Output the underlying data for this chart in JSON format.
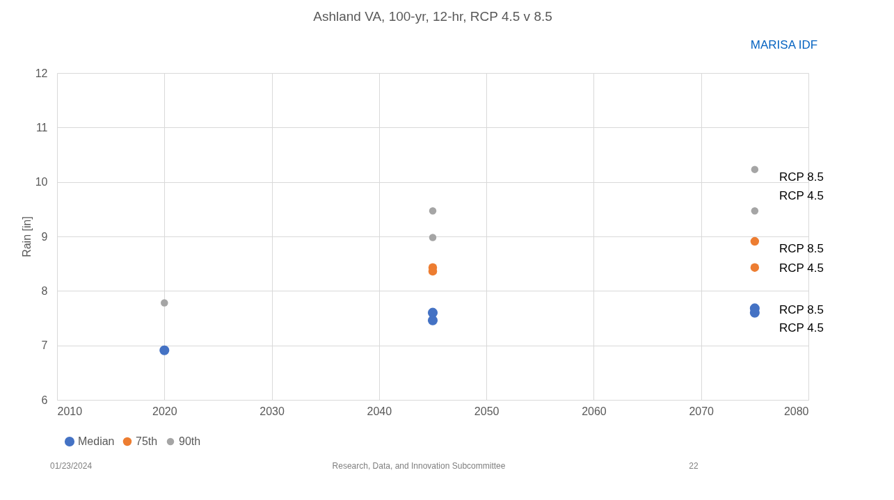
{
  "chart_data": {
    "type": "scatter",
    "title": "Ashland VA, 100-yr, 12-hr, RCP 4.5 v 8.5",
    "ylabel": "Rain [in]",
    "xlim": [
      2010,
      2080
    ],
    "xticks": [
      2010,
      2020,
      2030,
      2040,
      2050,
      2060,
      2070,
      2080
    ],
    "ylim": [
      6,
      12
    ],
    "yticks": [
      6,
      7,
      8,
      9,
      10,
      11,
      12
    ],
    "grid": true,
    "legend": "bottom",
    "marker": "circle",
    "series": [
      {
        "name": "Median",
        "color": "#4472c4",
        "x": [
          2020,
          2045,
          2045,
          2075,
          2075
        ],
        "values": [
          6.91,
          7.6,
          7.46,
          7.68,
          7.6
        ]
      },
      {
        "name": "75th",
        "color": "#ed7d31",
        "x": [
          2045,
          2045,
          2075,
          2075
        ],
        "values": [
          8.43,
          8.36,
          8.91,
          8.43
        ]
      },
      {
        "name": "90th",
        "color": "#a5a5a5",
        "x": [
          2020,
          2045,
          2045,
          2075,
          2075
        ],
        "values": [
          7.78,
          9.47,
          8.98,
          10.23,
          9.47
        ]
      }
    ],
    "annotations": [
      "RCP 8.5",
      "RCP 4.5",
      "RCP 8.5",
      "RCP 4.5",
      "RCP 8.5",
      "RCP 4.5",
      "MARISA IDF",
      "01/23/2024",
      "Research, Data, and Innovation Subcommittee",
      "22"
    ]
  }
}
